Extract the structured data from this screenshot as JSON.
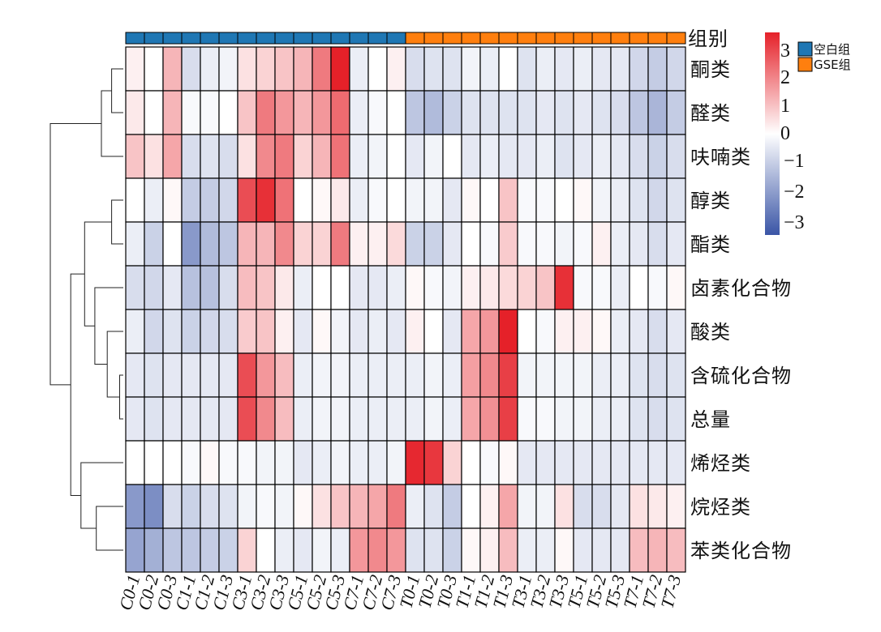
{
  "chart_data": {
    "type": "heatmap",
    "group_title": "组别",
    "columns": [
      "C0-1",
      "C0-2",
      "C0-3",
      "C1-1",
      "C1-2",
      "C1-3",
      "C3-1",
      "C3-2",
      "C3-3",
      "C5-1",
      "C5-2",
      "C5-3",
      "C7-1",
      "C7-2",
      "C7-3",
      "T0-1",
      "T0-2",
      "T0-3",
      "T1-1",
      "T1-2",
      "T1-3",
      "T3-1",
      "T3-2",
      "T3-3",
      "T5-1",
      "T5-2",
      "T5-3",
      "T7-1",
      "T7-2",
      "T7-3"
    ],
    "column_groups": [
      "空白组",
      "空白组",
      "空白组",
      "空白组",
      "空白组",
      "空白组",
      "空白组",
      "空白组",
      "空白组",
      "空白组",
      "空白组",
      "空白组",
      "空白组",
      "空白组",
      "空白组",
      "GSE组",
      "GSE组",
      "GSE组",
      "GSE组",
      "GSE组",
      "GSE组",
      "GSE组",
      "GSE组",
      "GSE组",
      "GSE组",
      "GSE组",
      "GSE组",
      "GSE组",
      "GSE组",
      "GSE组"
    ],
    "rows": [
      "酮类",
      "醛类",
      "呋喃类",
      "醇类",
      "酯类",
      "卤素化合物",
      "酸类",
      "含硫化合物",
      "总量",
      "烯烃类",
      "烷烃类",
      "苯类化合物"
    ],
    "values": [
      [
        0.2,
        0.0,
        1.0,
        -0.6,
        -0.3,
        -0.2,
        0.4,
        0.6,
        0.8,
        1.0,
        1.8,
        3.0,
        -0.3,
        0.0,
        0.2,
        -0.6,
        -0.5,
        -0.5,
        -0.2,
        -0.3,
        0.0,
        -0.5,
        -0.3,
        -0.4,
        -0.3,
        -0.4,
        -0.4,
        -0.7,
        -0.9,
        -0.7
      ],
      [
        0.3,
        0.0,
        1.0,
        -0.1,
        -0.1,
        0.0,
        0.8,
        1.8,
        1.4,
        1.0,
        1.4,
        2.0,
        -0.3,
        -0.1,
        0.0,
        -1.0,
        -1.2,
        -0.8,
        -0.5,
        -0.5,
        -0.5,
        -0.5,
        -0.4,
        -0.5,
        -0.4,
        -0.5,
        -0.6,
        -1.0,
        -1.3,
        -0.9
      ],
      [
        0.8,
        0.4,
        1.2,
        -0.6,
        -0.5,
        -0.6,
        0.4,
        1.6,
        1.8,
        0.6,
        1.0,
        1.9,
        -0.3,
        -0.2,
        0.0,
        -0.4,
        -0.2,
        0.0,
        -0.4,
        -0.3,
        -0.4,
        -0.4,
        -0.3,
        -0.5,
        -0.4,
        -0.3,
        -0.4,
        -0.6,
        -0.8,
        -0.6
      ],
      [
        0.0,
        -0.3,
        0.1,
        -0.9,
        -0.9,
        -0.7,
        2.4,
        2.8,
        1.9,
        0.0,
        0.1,
        0.3,
        -0.3,
        -0.1,
        0.0,
        -0.2,
        -0.2,
        -0.4,
        0.1,
        0.0,
        0.8,
        -0.1,
        -0.1,
        0.0,
        0.1,
        -0.2,
        -0.3,
        -0.5,
        -0.7,
        -0.5
      ],
      [
        -0.3,
        -0.8,
        0.0,
        -1.8,
        -1.2,
        -1.0,
        1.0,
        1.0,
        1.6,
        0.6,
        0.6,
        1.8,
        0.2,
        0.2,
        0.5,
        -0.8,
        -0.8,
        -0.4,
        0.0,
        -0.1,
        0.7,
        -0.1,
        -0.1,
        -0.2,
        -0.1,
        0.2,
        -0.3,
        -0.4,
        -0.6,
        -0.4
      ],
      [
        -0.6,
        -0.7,
        -0.4,
        -1.1,
        -1.1,
        -0.6,
        0.9,
        0.8,
        0.3,
        -0.3,
        0.0,
        0.0,
        -0.4,
        -0.4,
        -0.3,
        0.1,
        -0.1,
        -0.2,
        0.2,
        0.3,
        0.5,
        0.6,
        0.8,
        2.8,
        -0.1,
        -0.1,
        -0.3,
        0.0,
        -0.1,
        0.1
      ],
      [
        -0.3,
        -0.7,
        -0.5,
        -0.8,
        -0.7,
        -0.6,
        0.7,
        0.8,
        0.2,
        -0.4,
        0.1,
        -0.2,
        -0.4,
        -0.3,
        -0.4,
        0.2,
        0.0,
        -0.4,
        1.2,
        1.4,
        3.0,
        0.0,
        -0.1,
        0.2,
        0.2,
        0.1,
        -0.3,
        -0.4,
        -0.6,
        -0.4
      ],
      [
        -0.4,
        -0.5,
        -0.4,
        -0.4,
        -0.4,
        -0.4,
        2.4,
        1.4,
        0.9,
        -0.3,
        -0.2,
        -0.2,
        -0.3,
        -0.3,
        -0.3,
        -0.3,
        -0.2,
        -0.3,
        1.3,
        1.6,
        2.6,
        -0.2,
        -0.2,
        -0.2,
        -0.2,
        -0.3,
        -0.3,
        -0.5,
        -0.6,
        -0.5
      ],
      [
        -0.4,
        -0.5,
        -0.4,
        -0.4,
        -0.4,
        -0.4,
        2.4,
        1.6,
        0.9,
        -0.3,
        -0.2,
        -0.2,
        -0.3,
        -0.3,
        -0.3,
        -0.3,
        -0.2,
        -0.3,
        1.2,
        1.5,
        2.6,
        -0.1,
        -0.1,
        -0.2,
        -0.2,
        -0.3,
        -0.3,
        -0.5,
        -0.6,
        -0.5
      ],
      [
        0.0,
        0.0,
        0.0,
        -0.1,
        0.1,
        -0.1,
        -0.1,
        -0.2,
        -0.2,
        -0.4,
        -0.3,
        -0.2,
        -0.3,
        -0.3,
        -0.2,
        2.9,
        2.7,
        0.6,
        0.0,
        -0.1,
        0.1,
        -0.4,
        -0.4,
        -0.4,
        -0.4,
        -0.4,
        -0.4,
        -0.4,
        -0.4,
        -0.4
      ],
      [
        -1.8,
        -2.0,
        -0.6,
        -0.8,
        -0.6,
        -0.5,
        -0.2,
        -0.1,
        -0.2,
        0.1,
        0.4,
        0.8,
        1.0,
        1.2,
        1.8,
        -0.3,
        -0.5,
        -0.9,
        0.0,
        0.2,
        1.2,
        -0.2,
        -0.2,
        0.4,
        -0.6,
        -0.6,
        -0.4,
        0.4,
        0.3,
        0.2
      ],
      [
        -1.6,
        -1.4,
        -1.0,
        -1.0,
        -0.9,
        -0.8,
        0.6,
        0.0,
        -0.3,
        -0.4,
        -0.2,
        -0.3,
        1.4,
        1.6,
        1.4,
        -0.5,
        -0.5,
        -0.8,
        0.1,
        0.2,
        0.9,
        -0.3,
        -0.3,
        0.1,
        -0.4,
        -0.4,
        -0.4,
        0.9,
        1.0,
        0.9
      ]
    ],
    "color_scale": {
      "min": -3,
      "max": 3,
      "ticks": [
        3,
        2,
        1,
        0,
        -1,
        -2,
        -3
      ],
      "low": "#3a55a6",
      "mid": "#ffffff",
      "high": "#e52129"
    },
    "group_legend": [
      {
        "name": "空白组",
        "color": "#1f77b4"
      },
      {
        "name": "GSE组",
        "color": "#ff7f0e"
      }
    ],
    "dendrogram": {
      "leaf_order": [
        "酮类",
        "醛类",
        "呋喃类",
        "醇类",
        "酯类",
        "卤素化合物",
        "酸类",
        "含硫化合物",
        "总量",
        "烯烃类",
        "烷烃类",
        "苯类化合物"
      ],
      "merges": [
        {
          "a": "L1",
          "b": "L2",
          "height": 0.16
        },
        {
          "a": "L3",
          "b": "M0",
          "height": 0.3
        },
        {
          "a": "L4",
          "b": "L5",
          "height": 0.16
        },
        {
          "a": "L8",
          "b": "L9",
          "height": 0.05
        },
        {
          "a": "L7",
          "b": "M3",
          "height": 0.22
        },
        {
          "a": "L6",
          "b": "M4",
          "height": 0.39
        },
        {
          "a": "M2",
          "b": "M5",
          "height": 0.53
        },
        {
          "a": "L11",
          "b": "L12",
          "height": 0.37
        },
        {
          "a": "L10",
          "b": "M7",
          "height": 0.58
        },
        {
          "a": "M6",
          "b": "M8",
          "height": 0.72
        },
        {
          "a": "M1",
          "b": "M9",
          "height": 1.0
        }
      ]
    }
  }
}
